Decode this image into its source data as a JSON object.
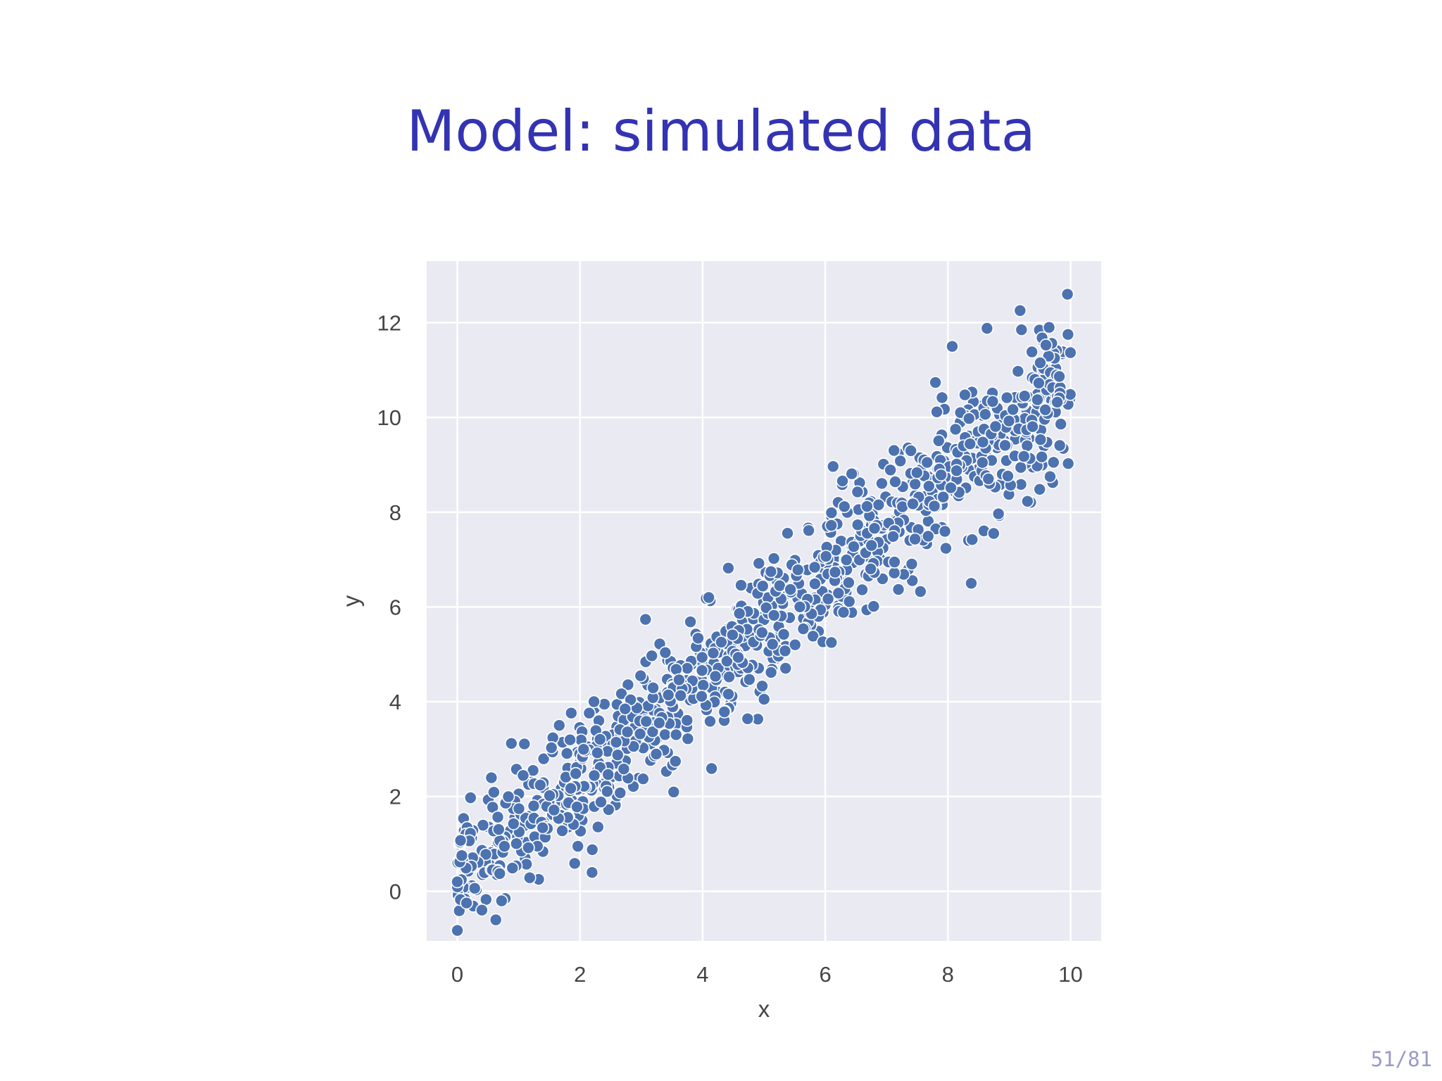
{
  "slide": {
    "title": "Model: simulated data",
    "page_number": "51/81"
  },
  "colors": {
    "title": "#3333b3",
    "plot_background": "#eaeaf2",
    "grid": "#ffffff",
    "marker": "#4c72b0",
    "page_number": "#9a9ac8"
  },
  "chart_data": {
    "type": "scatter",
    "title": "",
    "xlabel": "x",
    "ylabel": "y",
    "xlim": [
      -0.5,
      10.5
    ],
    "ylim": [
      -1.05,
      13.3
    ],
    "xticks": [
      0,
      2,
      4,
      6,
      8,
      10
    ],
    "yticks": [
      0,
      2,
      4,
      6,
      8,
      10,
      12
    ],
    "grid": true,
    "marker": "circle",
    "n_points": 1000,
    "trend": {
      "intercept": 0.3,
      "slope": 1.05,
      "noise_sd": 0.72
    },
    "notable_points": [
      {
        "x": 9.95,
        "y": 12.6
      },
      {
        "x": 8.07,
        "y": 11.5
      },
      {
        "x": 8.38,
        "y": 6.5
      },
      {
        "x": 6.1,
        "y": 5.25
      },
      {
        "x": 0.4,
        "y": -0.4
      },
      {
        "x": 0.15,
        "y": -0.25
      },
      {
        "x": 0.0,
        "y": 0.2
      },
      {
        "x": 9.2,
        "y": 11.85
      },
      {
        "x": 9.65,
        "y": 11.9
      },
      {
        "x": 4.1,
        "y": 6.2
      }
    ]
  }
}
